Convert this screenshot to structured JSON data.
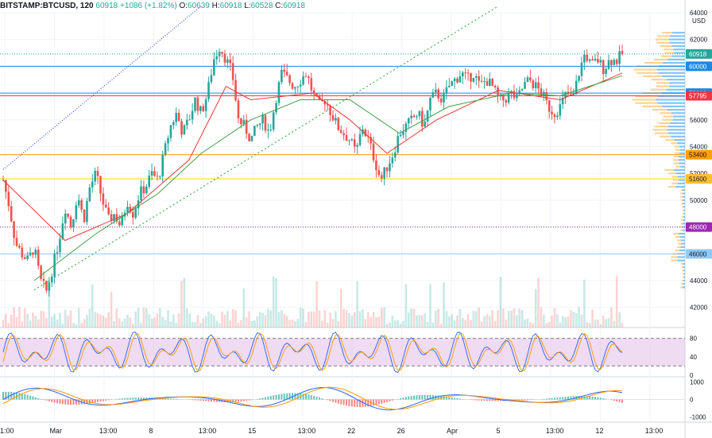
{
  "header": {
    "symbol": "BITSTAMP:BTCUSD, 120",
    "last": "60918",
    "change": "+1086 (+1.82%)",
    "o_label": "O:",
    "o_val": "60639",
    "h_label": "H:",
    "h_val": "60918",
    "l_label": "L:",
    "l_val": "60528",
    "c_label": "C:",
    "c_val": "60918"
  },
  "colors": {
    "up": "#26a69a",
    "down": "#ef5350",
    "ma_red": "#e53935",
    "ma_green": "#43a047",
    "trend_green": "#4caf50",
    "trend_blue": "#3f51f5",
    "stoch_band": "#e1bee7",
    "macd_blue": "#2962ff",
    "macd_orange": "#ff9800",
    "vp_orange": "#ffcc80",
    "vp_blue": "#64b5f6"
  },
  "chart_data": {
    "type": "candlestick",
    "symbol": "BTCUSD",
    "exchange": "BITSTAMP",
    "interval": "120",
    "ylim": [
      40500,
      64000
    ],
    "y_ticks": [
      42000,
      44000,
      46000,
      48000,
      50000,
      52000,
      54000,
      56000,
      58000,
      60000,
      62000,
      64000
    ],
    "y_unit": "USD",
    "x_labels": [
      "1:00",
      "Mar",
      "13:00",
      "8",
      "13:00",
      "15",
      "13:00",
      "22",
      "26",
      "Apr",
      "5",
      "13:00",
      "12",
      "13:00"
    ],
    "price_path": [
      [
        0,
        51500
      ],
      [
        1,
        49500
      ],
      [
        2,
        46800
      ],
      [
        3,
        46000
      ],
      [
        4,
        45500
      ],
      [
        5,
        46500
      ],
      [
        6,
        44000
      ],
      [
        7,
        43200
      ],
      [
        8,
        45000
      ],
      [
        9,
        47000
      ],
      [
        10,
        49500
      ],
      [
        11,
        48000
      ],
      [
        12,
        50500
      ],
      [
        13,
        48500
      ],
      [
        14,
        51000
      ],
      [
        15,
        52000
      ],
      [
        16,
        50000
      ],
      [
        17,
        48500
      ],
      [
        18,
        49000
      ],
      [
        19,
        48000
      ],
      [
        20,
        50000
      ],
      [
        21,
        49000
      ],
      [
        22,
        50500
      ],
      [
        23,
        51000
      ],
      [
        24,
        52000
      ],
      [
        25,
        51500
      ],
      [
        26,
        53500
      ],
      [
        27,
        55500
      ],
      [
        28,
        56500
      ],
      [
        29,
        55000
      ],
      [
        30,
        56000
      ],
      [
        31,
        57500
      ],
      [
        32,
        56500
      ],
      [
        33,
        58000
      ],
      [
        34,
        60500
      ],
      [
        35,
        61500
      ],
      [
        36,
        60500
      ],
      [
        37,
        59500
      ],
      [
        38,
        56000
      ],
      [
        39,
        55500
      ],
      [
        40,
        54500
      ],
      [
        41,
        55500
      ],
      [
        42,
        56000
      ],
      [
        43,
        55000
      ],
      [
        44,
        57500
      ],
      [
        45,
        59500
      ],
      [
        46,
        59000
      ],
      [
        47,
        58500
      ],
      [
        48,
        59000
      ],
      [
        49,
        59500
      ],
      [
        50,
        58000
      ],
      [
        51,
        57000
      ],
      [
        52,
        57500
      ],
      [
        53,
        56500
      ],
      [
        54,
        55500
      ],
      [
        55,
        55000
      ],
      [
        56,
        54500
      ],
      [
        57,
        53500
      ],
      [
        58,
        55500
      ],
      [
        59,
        54500
      ],
      [
        60,
        53000
      ],
      [
        61,
        51500
      ],
      [
        62,
        52500
      ],
      [
        63,
        53500
      ],
      [
        64,
        55000
      ],
      [
        65,
        55500
      ],
      [
        66,
        56000
      ],
      [
        67,
        56500
      ],
      [
        68,
        55500
      ],
      [
        69,
        57500
      ],
      [
        70,
        58000
      ],
      [
        71,
        57500
      ],
      [
        72,
        58500
      ],
      [
        73,
        59000
      ],
      [
        74,
        59500
      ],
      [
        75,
        59000
      ],
      [
        76,
        59500
      ],
      [
        77,
        58500
      ],
      [
        78,
        59000
      ],
      [
        79,
        58500
      ],
      [
        80,
        57500
      ],
      [
        81,
        57500
      ],
      [
        82,
        58000
      ],
      [
        83,
        57500
      ],
      [
        84,
        58500
      ],
      [
        85,
        59000
      ],
      [
        86,
        58500
      ],
      [
        87,
        58000
      ],
      [
        88,
        57000
      ],
      [
        89,
        56500
      ],
      [
        90,
        57000
      ],
      [
        91,
        58000
      ],
      [
        92,
        57500
      ],
      [
        93,
        59500
      ],
      [
        94,
        61000
      ],
      [
        95,
        60000
      ],
      [
        96,
        60500
      ],
      [
        97,
        59800
      ],
      [
        98,
        60500
      ],
      [
        99,
        60400
      ],
      [
        100,
        60918
      ]
    ],
    "ma_red": [
      [
        0,
        51500
      ],
      [
        10,
        47000
      ],
      [
        20,
        49000
      ],
      [
        30,
        53000
      ],
      [
        36,
        58500
      ],
      [
        40,
        57500
      ],
      [
        50,
        58000
      ],
      [
        56,
        56000
      ],
      [
        62,
        53500
      ],
      [
        70,
        56000
      ],
      [
        80,
        58200
      ],
      [
        90,
        57500
      ],
      [
        100,
        59500
      ]
    ],
    "ma_green": [
      [
        5,
        44000
      ],
      [
        15,
        47500
      ],
      [
        25,
        50500
      ],
      [
        32,
        53500
      ],
      [
        40,
        56000
      ],
      [
        48,
        57500
      ],
      [
        56,
        57500
      ],
      [
        64,
        55000
      ],
      [
        72,
        57000
      ],
      [
        82,
        58000
      ],
      [
        90,
        57800
      ],
      [
        100,
        59300
      ]
    ],
    "trendline_green": [
      [
        5,
        43300
      ],
      [
        80,
        64500
      ]
    ],
    "trendline_blue": [
      [
        0,
        52300
      ],
      [
        32,
        64500
      ]
    ],
    "price_labels": [
      {
        "value": 60918,
        "text": "60918",
        "color": "#26a69a"
      },
      {
        "value": 60000,
        "text": "60000",
        "color": "#1e88e5"
      },
      {
        "value": 58000,
        "text": "58000",
        "color": "#1e88e5"
      },
      {
        "value": 57795,
        "text": "57795",
        "color": "#f23645"
      },
      {
        "value": 53400,
        "text": "53400",
        "color": "#ffa000"
      },
      {
        "value": 51600,
        "text": "51600",
        "color": "#fbc02d"
      },
      {
        "value": 48000,
        "text": "48000",
        "color": "#9c27b0"
      },
      {
        "value": 46000,
        "text": "46000",
        "color": "#90caf9"
      }
    ],
    "stoch_rsi": {
      "levels": [
        80,
        40,
        0
      ],
      "upper": 80,
      "lower": 20
    },
    "macd": {
      "levels": [
        1000,
        0,
        -1000
      ]
    }
  }
}
